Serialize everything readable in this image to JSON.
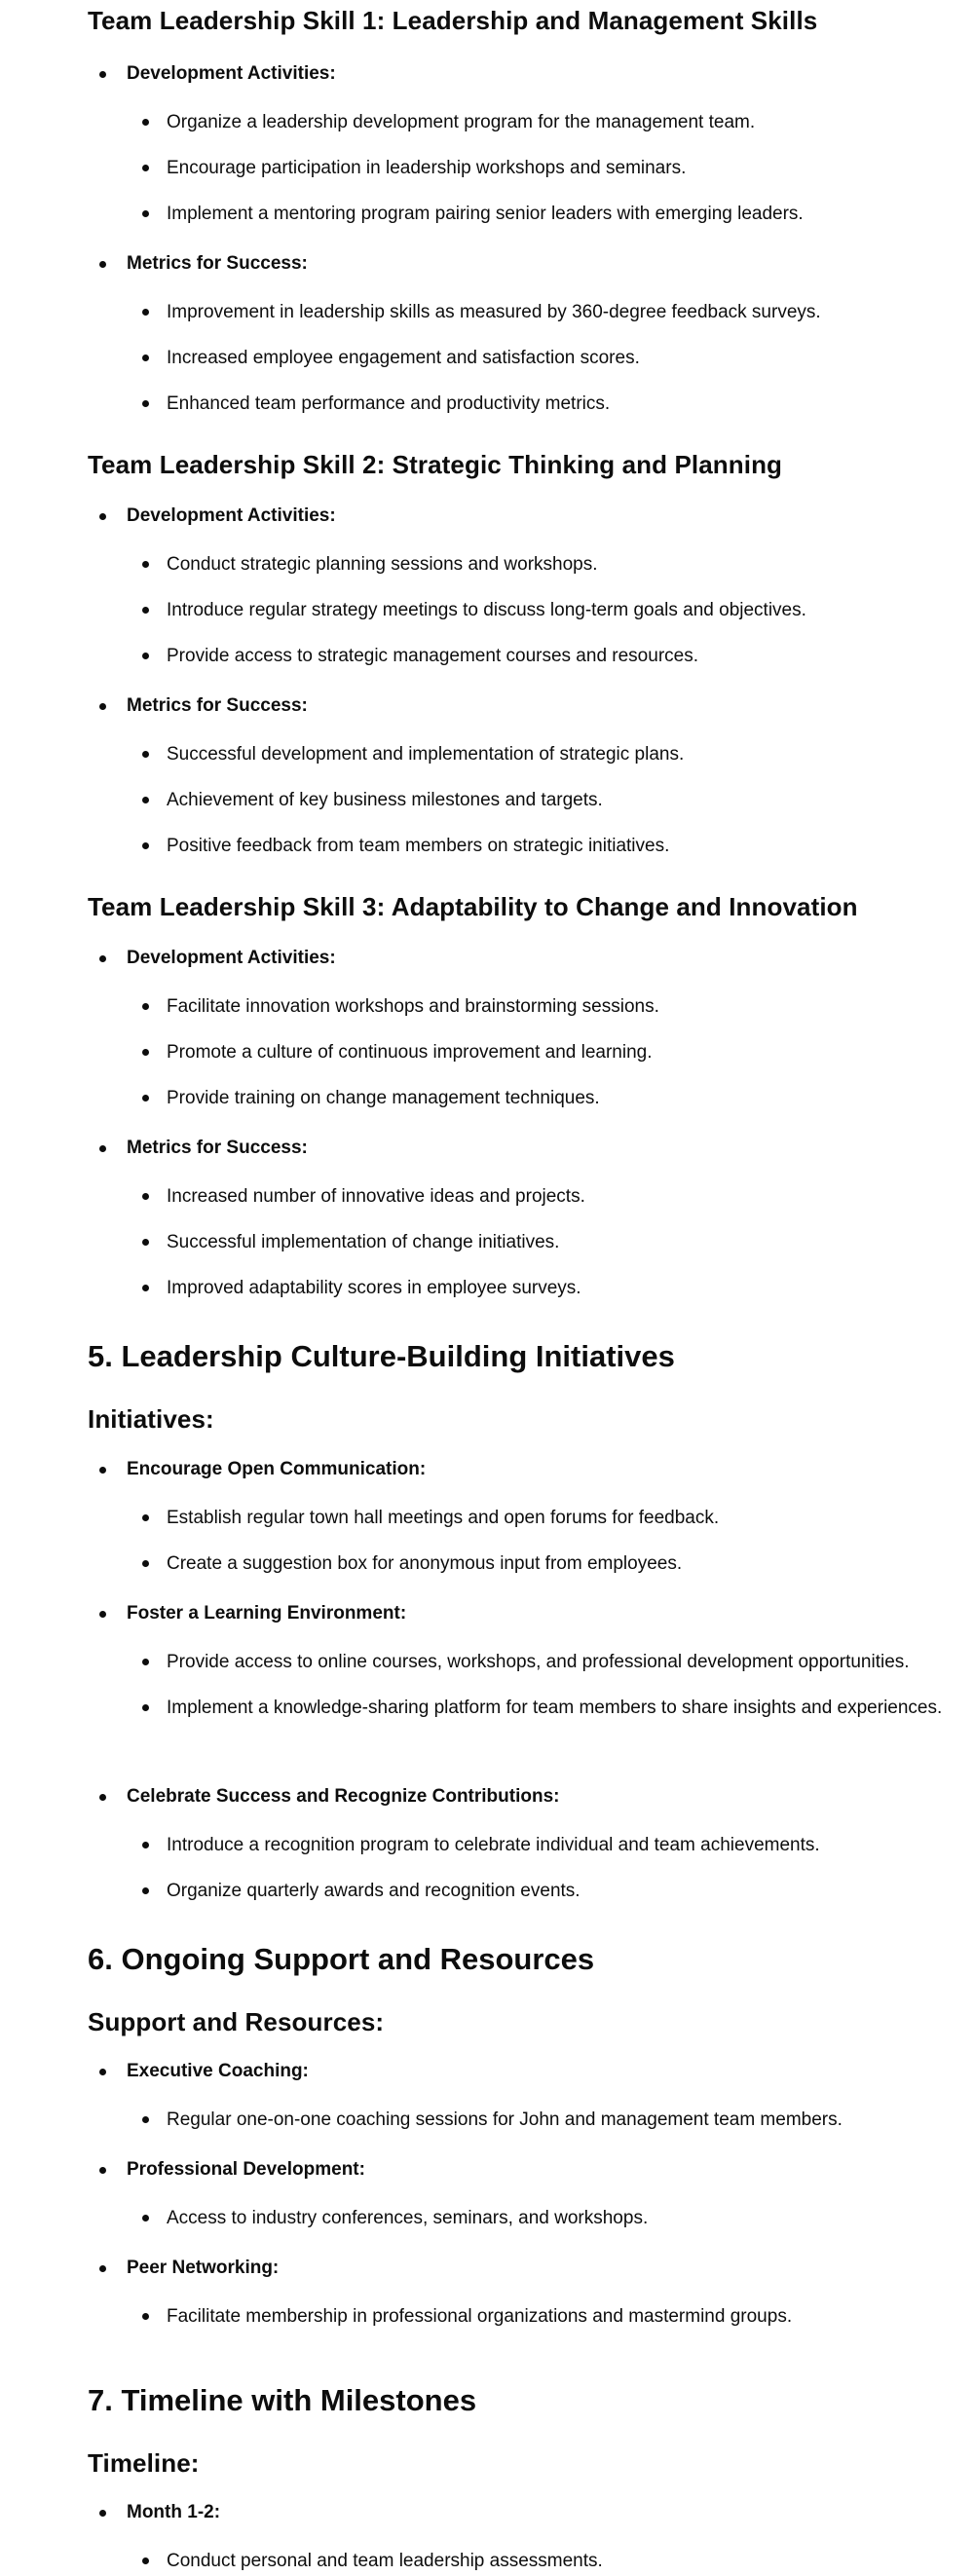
{
  "sections": [
    {
      "kind": "h3",
      "title": "Team Leadership Skill 1: Leadership and Management Skills",
      "groups": [
        {
          "label": "Development Activities:",
          "items": [
            "Organize a leadership development program for the management team.",
            "Encourage participation in leadership workshops and seminars.",
            "Implement a mentoring program pairing senior leaders with emerging leaders."
          ]
        },
        {
          "label": "Metrics for Success:",
          "items": [
            "Improvement in leadership skills as measured by 360-degree feedback surveys.",
            "Increased employee engagement and satisfaction scores.",
            "Enhanced team performance and productivity metrics."
          ]
        }
      ]
    },
    {
      "kind": "h3",
      "title": "Team Leadership Skill 2: Strategic Thinking and Planning",
      "groups": [
        {
          "label": "Development Activities:",
          "items": [
            "Conduct strategic planning sessions and workshops.",
            "Introduce regular strategy meetings to discuss long-term goals and objectives.",
            "Provide access to strategic management courses and resources."
          ]
        },
        {
          "label": "Metrics for Success:",
          "items": [
            "Successful development and implementation of strategic plans.",
            "Achievement of key business milestones and targets.",
            "Positive feedback from team members on strategic initiatives."
          ]
        }
      ]
    },
    {
      "kind": "h3",
      "title": "Team Leadership Skill 3: Adaptability to Change and Innovation",
      "groups": [
        {
          "label": "Development Activities:",
          "items": [
            "Facilitate innovation workshops and brainstorming sessions.",
            "Promote a culture of continuous improvement and learning.",
            "Provide training on change management techniques."
          ]
        },
        {
          "label": "Metrics for Success:",
          "items": [
            "Increased number of innovative ideas and projects.",
            "Successful implementation of change initiatives.",
            "Improved adaptability scores in employee surveys."
          ]
        }
      ]
    },
    {
      "kind": "h2",
      "title": "5. Leadership Culture-Building Initiatives",
      "subtitle": "Initiatives:",
      "groups": [
        {
          "label": "Encourage Open Communication:",
          "items": [
            "Establish regular town hall meetings and open forums for feedback.",
            "Create a suggestion box for anonymous input from employees."
          ]
        },
        {
          "label": "Foster a Learning Environment:",
          "items": [
            "Provide access to online courses, workshops, and professional development opportunities.",
            "Implement a knowledge-sharing platform for team members to share insights and experiences."
          ]
        },
        {
          "label": "Celebrate Success and Recognize Contributions:",
          "items": [
            "Introduce a recognition program to celebrate individual and team achievements.",
            "Organize quarterly awards and recognition events."
          ]
        }
      ]
    },
    {
      "kind": "h2",
      "title": "6. Ongoing Support and Resources",
      "subtitle": "Support and Resources:",
      "groups": [
        {
          "label": "Executive Coaching:",
          "items": [
            "Regular one-on-one coaching sessions for John and management team members."
          ]
        },
        {
          "label": "Professional Development:",
          "items": [
            "Access to industry conferences, seminars, and workshops."
          ]
        },
        {
          "label": "Peer Networking:",
          "items": [
            "Facilitate membership in professional organizations and mastermind groups."
          ]
        }
      ]
    },
    {
      "kind": "h2",
      "title": "7. Timeline with Milestones",
      "subtitle": "Timeline:",
      "groups": [
        {
          "label": "Month 1-2:",
          "items": [
            "Conduct personal and team leadership assessments."
          ]
        }
      ]
    }
  ]
}
